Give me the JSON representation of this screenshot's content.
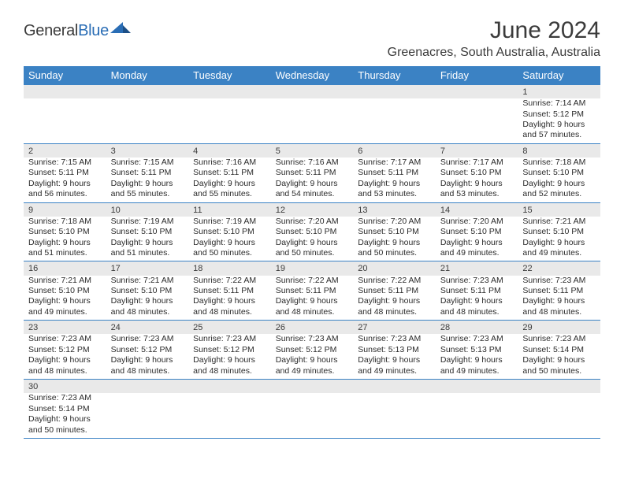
{
  "logo": {
    "text1": "General",
    "text2": "Blue"
  },
  "title": "June 2024",
  "location": "Greenacres, South Australia, Australia",
  "colors": {
    "header_bg": "#3b82c4",
    "header_text": "#ffffff",
    "daynum_bg": "#e9e9e9",
    "border": "#3b82c4",
    "text": "#2b2b2b"
  },
  "day_names": [
    "Sunday",
    "Monday",
    "Tuesday",
    "Wednesday",
    "Thursday",
    "Friday",
    "Saturday"
  ],
  "weeks": [
    [
      null,
      null,
      null,
      null,
      null,
      null,
      {
        "n": "1",
        "sr": "Sunrise: 7:14 AM",
        "ss": "Sunset: 5:12 PM",
        "d1": "Daylight: 9 hours",
        "d2": "and 57 minutes."
      }
    ],
    [
      {
        "n": "2",
        "sr": "Sunrise: 7:15 AM",
        "ss": "Sunset: 5:11 PM",
        "d1": "Daylight: 9 hours",
        "d2": "and 56 minutes."
      },
      {
        "n": "3",
        "sr": "Sunrise: 7:15 AM",
        "ss": "Sunset: 5:11 PM",
        "d1": "Daylight: 9 hours",
        "d2": "and 55 minutes."
      },
      {
        "n": "4",
        "sr": "Sunrise: 7:16 AM",
        "ss": "Sunset: 5:11 PM",
        "d1": "Daylight: 9 hours",
        "d2": "and 55 minutes."
      },
      {
        "n": "5",
        "sr": "Sunrise: 7:16 AM",
        "ss": "Sunset: 5:11 PM",
        "d1": "Daylight: 9 hours",
        "d2": "and 54 minutes."
      },
      {
        "n": "6",
        "sr": "Sunrise: 7:17 AM",
        "ss": "Sunset: 5:11 PM",
        "d1": "Daylight: 9 hours",
        "d2": "and 53 minutes."
      },
      {
        "n": "7",
        "sr": "Sunrise: 7:17 AM",
        "ss": "Sunset: 5:10 PM",
        "d1": "Daylight: 9 hours",
        "d2": "and 53 minutes."
      },
      {
        "n": "8",
        "sr": "Sunrise: 7:18 AM",
        "ss": "Sunset: 5:10 PM",
        "d1": "Daylight: 9 hours",
        "d2": "and 52 minutes."
      }
    ],
    [
      {
        "n": "9",
        "sr": "Sunrise: 7:18 AM",
        "ss": "Sunset: 5:10 PM",
        "d1": "Daylight: 9 hours",
        "d2": "and 51 minutes."
      },
      {
        "n": "10",
        "sr": "Sunrise: 7:19 AM",
        "ss": "Sunset: 5:10 PM",
        "d1": "Daylight: 9 hours",
        "d2": "and 51 minutes."
      },
      {
        "n": "11",
        "sr": "Sunrise: 7:19 AM",
        "ss": "Sunset: 5:10 PM",
        "d1": "Daylight: 9 hours",
        "d2": "and 50 minutes."
      },
      {
        "n": "12",
        "sr": "Sunrise: 7:20 AM",
        "ss": "Sunset: 5:10 PM",
        "d1": "Daylight: 9 hours",
        "d2": "and 50 minutes."
      },
      {
        "n": "13",
        "sr": "Sunrise: 7:20 AM",
        "ss": "Sunset: 5:10 PM",
        "d1": "Daylight: 9 hours",
        "d2": "and 50 minutes."
      },
      {
        "n": "14",
        "sr": "Sunrise: 7:20 AM",
        "ss": "Sunset: 5:10 PM",
        "d1": "Daylight: 9 hours",
        "d2": "and 49 minutes."
      },
      {
        "n": "15",
        "sr": "Sunrise: 7:21 AM",
        "ss": "Sunset: 5:10 PM",
        "d1": "Daylight: 9 hours",
        "d2": "and 49 minutes."
      }
    ],
    [
      {
        "n": "16",
        "sr": "Sunrise: 7:21 AM",
        "ss": "Sunset: 5:10 PM",
        "d1": "Daylight: 9 hours",
        "d2": "and 49 minutes."
      },
      {
        "n": "17",
        "sr": "Sunrise: 7:21 AM",
        "ss": "Sunset: 5:10 PM",
        "d1": "Daylight: 9 hours",
        "d2": "and 48 minutes."
      },
      {
        "n": "18",
        "sr": "Sunrise: 7:22 AM",
        "ss": "Sunset: 5:11 PM",
        "d1": "Daylight: 9 hours",
        "d2": "and 48 minutes."
      },
      {
        "n": "19",
        "sr": "Sunrise: 7:22 AM",
        "ss": "Sunset: 5:11 PM",
        "d1": "Daylight: 9 hours",
        "d2": "and 48 minutes."
      },
      {
        "n": "20",
        "sr": "Sunrise: 7:22 AM",
        "ss": "Sunset: 5:11 PM",
        "d1": "Daylight: 9 hours",
        "d2": "and 48 minutes."
      },
      {
        "n": "21",
        "sr": "Sunrise: 7:23 AM",
        "ss": "Sunset: 5:11 PM",
        "d1": "Daylight: 9 hours",
        "d2": "and 48 minutes."
      },
      {
        "n": "22",
        "sr": "Sunrise: 7:23 AM",
        "ss": "Sunset: 5:11 PM",
        "d1": "Daylight: 9 hours",
        "d2": "and 48 minutes."
      }
    ],
    [
      {
        "n": "23",
        "sr": "Sunrise: 7:23 AM",
        "ss": "Sunset: 5:12 PM",
        "d1": "Daylight: 9 hours",
        "d2": "and 48 minutes."
      },
      {
        "n": "24",
        "sr": "Sunrise: 7:23 AM",
        "ss": "Sunset: 5:12 PM",
        "d1": "Daylight: 9 hours",
        "d2": "and 48 minutes."
      },
      {
        "n": "25",
        "sr": "Sunrise: 7:23 AM",
        "ss": "Sunset: 5:12 PM",
        "d1": "Daylight: 9 hours",
        "d2": "and 48 minutes."
      },
      {
        "n": "26",
        "sr": "Sunrise: 7:23 AM",
        "ss": "Sunset: 5:12 PM",
        "d1": "Daylight: 9 hours",
        "d2": "and 49 minutes."
      },
      {
        "n": "27",
        "sr": "Sunrise: 7:23 AM",
        "ss": "Sunset: 5:13 PM",
        "d1": "Daylight: 9 hours",
        "d2": "and 49 minutes."
      },
      {
        "n": "28",
        "sr": "Sunrise: 7:23 AM",
        "ss": "Sunset: 5:13 PM",
        "d1": "Daylight: 9 hours",
        "d2": "and 49 minutes."
      },
      {
        "n": "29",
        "sr": "Sunrise: 7:23 AM",
        "ss": "Sunset: 5:14 PM",
        "d1": "Daylight: 9 hours",
        "d2": "and 50 minutes."
      }
    ],
    [
      {
        "n": "30",
        "sr": "Sunrise: 7:23 AM",
        "ss": "Sunset: 5:14 PM",
        "d1": "Daylight: 9 hours",
        "d2": "and 50 minutes."
      },
      null,
      null,
      null,
      null,
      null,
      null
    ]
  ]
}
